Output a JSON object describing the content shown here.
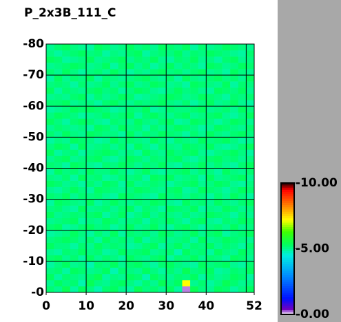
{
  "chart_data": {
    "type": "heatmap",
    "title": "P_2x3B_111_C",
    "xbins": [
      0,
      2,
      4,
      6,
      8,
      10,
      12,
      14,
      16,
      18,
      20,
      22,
      24,
      26,
      28,
      30,
      32,
      34,
      36,
      38,
      40,
      42,
      44,
      46,
      48,
      50,
      52
    ],
    "ybins": [
      0,
      2,
      4,
      6,
      8,
      10,
      12,
      14,
      16,
      18,
      20,
      22,
      24,
      26,
      28,
      30,
      32,
      34,
      36,
      38,
      40,
      42,
      44,
      46,
      48,
      50,
      52,
      54,
      56,
      58,
      60,
      62,
      64,
      66,
      68,
      70,
      72,
      74,
      76,
      78,
      80
    ],
    "z": [
      [
        5.2,
        5.0,
        5.4,
        4.9,
        5.3,
        5.1,
        4.8,
        5.2,
        5.3,
        5.0,
        4.9,
        5.4,
        5.1,
        5.2,
        5.0,
        5.3,
        4.9,
        0.2,
        5.4,
        5.1,
        5.0,
        5.3,
        5.2,
        4.9,
        5.1,
        5.3
      ],
      [
        5.0,
        5.3,
        5.1,
        5.2,
        4.8,
        5.4,
        5.1,
        5.0,
        5.2,
        5.3,
        5.1,
        4.9,
        5.2,
        5.0,
        5.4,
        5.1,
        5.3,
        7.2,
        5.0,
        5.2,
        4.9,
        5.1,
        5.4,
        5.2,
        5.0,
        5.1
      ],
      [
        5.3,
        4.9,
        5.2,
        5.1,
        5.0,
        5.2,
        5.4,
        4.9,
        5.1,
        5.0,
        5.3,
        5.2,
        4.8,
        5.3,
        5.1,
        5.0,
        5.2,
        5.1,
        5.3,
        4.9,
        5.2,
        5.0,
        5.1,
        5.3,
        5.2,
        4.9
      ],
      [
        5.1,
        5.2,
        4.9,
        5.3,
        5.2,
        5.0,
        5.1,
        5.3,
        4.8,
        5.2,
        5.1,
        5.0,
        5.3,
        5.1,
        4.9,
        5.2,
        5.0,
        5.4,
        5.1,
        5.2,
        5.3,
        4.9,
        5.0,
        5.2,
        5.1,
        5.3
      ],
      [
        4.9,
        5.1,
        5.3,
        5.0,
        5.1,
        4.8,
        5.2,
        5.1,
        5.3,
        5.0,
        5.2,
        5.3,
        5.1,
        4.9,
        5.2,
        5.3,
        5.1,
        5.0,
        4.9,
        5.3,
        5.1,
        5.2,
        5.3,
        5.0,
        4.9,
        5.2
      ],
      [
        5.2,
        5.3,
        5.0,
        5.2,
        4.9,
        5.3,
        5.0,
        5.2,
        5.1,
        4.9,
        5.3,
        5.1,
        5.0,
        5.2,
        5.3,
        4.9,
        5.2,
        5.1,
        5.3,
        5.0,
        5.2,
        5.1,
        4.9,
        5.3,
        5.2,
        5.0
      ],
      [
        5.0,
        4.9,
        5.2,
        5.1,
        5.3,
        5.1,
        5.2,
        4.9,
        5.0,
        5.3,
        5.1,
        5.2,
        5.3,
        5.0,
        5.1,
        5.2,
        4.8,
        5.3,
        5.1,
        5.2,
        4.9,
        5.3,
        5.1,
        5.0,
        5.3,
        5.1
      ],
      [
        5.3,
        5.1,
        5.1,
        4.9,
        5.2,
        5.0,
        5.3,
        5.1,
        5.2,
        5.1,
        4.9,
        5.0,
        5.2,
        5.3,
        4.9,
        5.1,
        5.3,
        5.0,
        5.2,
        5.1,
        5.3,
        5.0,
        5.2,
        5.1,
        4.9,
        5.2
      ],
      [
        5.1,
        5.2,
        5.3,
        5.2,
        5.0,
        5.2,
        4.9,
        5.3,
        5.1,
        5.2,
        5.0,
        5.3,
        4.9,
        5.1,
        5.2,
        5.0,
        5.1,
        5.2,
        4.9,
        5.3,
        5.0,
        5.1,
        5.3,
        5.2,
        5.1,
        5.0
      ],
      [
        4.9,
        5.0,
        5.1,
        5.3,
        5.1,
        4.9,
        5.2,
        5.0,
        5.3,
        4.9,
        5.2,
        5.1,
        5.2,
        5.0,
        5.3,
        5.2,
        5.0,
        5.1,
        5.3,
        5.0,
        5.2,
        5.3,
        4.9,
        5.1,
        5.2,
        5.3
      ],
      [
        5.2,
        5.3,
        4.9,
        5.0,
        5.2,
        5.3,
        5.1,
        5.2,
        4.9,
        5.1,
        5.3,
        5.0,
        5.1,
        5.3,
        5.0,
        4.9,
        5.2,
        5.3,
        5.1,
        4.9,
        5.1,
        5.2,
        5.0,
        5.3,
        5.0,
        5.1
      ],
      [
        5.0,
        5.1,
        5.2,
        5.3,
        4.9,
        5.1,
        5.0,
        5.3,
        5.2,
        5.0,
        5.1,
        5.2,
        4.9,
        5.2,
        5.1,
        5.3,
        5.1,
        4.9,
        5.2,
        5.3,
        5.0,
        4.9,
        5.2,
        5.1,
        5.3,
        5.2
      ],
      [
        5.3,
        5.0,
        5.1,
        5.2,
        5.1,
        5.2,
        5.3,
        4.9,
        5.1,
        5.3,
        4.9,
        5.1,
        5.3,
        5.0,
        5.2,
        5.1,
        5.0,
        5.2,
        5.0,
        5.1,
        5.3,
        5.2,
        5.1,
        4.9,
        5.2,
        5.0
      ],
      [
        5.1,
        5.2,
        5.0,
        4.9,
        5.3,
        5.0,
        5.1,
        5.2,
        5.0,
        5.2,
        5.3,
        4.9,
        5.2,
        5.1,
        4.9,
        5.3,
        5.2,
        5.1,
        5.3,
        4.9,
        5.1,
        5.0,
        5.3,
        5.2,
        5.0,
        5.1
      ],
      [
        4.9,
        5.3,
        5.2,
        5.1,
        5.0,
        5.3,
        4.9,
        5.1,
        5.3,
        5.1,
        5.0,
        5.2,
        5.1,
        5.3,
        5.2,
        5.0,
        4.9,
        5.3,
        5.1,
        5.2,
        5.0,
        5.3,
        5.1,
        5.0,
        5.2,
        5.3
      ],
      [
        5.2,
        5.1,
        5.3,
        5.0,
        5.2,
        5.1,
        5.2,
        5.0,
        4.9,
        5.3,
        5.2,
        5.1,
        5.0,
        4.9,
        5.3,
        5.1,
        5.2,
        5.0,
        5.2,
        5.1,
        4.9,
        5.2,
        5.0,
        5.3,
        5.1,
        4.9
      ],
      [
        5.0,
        4.9,
        5.1,
        5.3,
        5.1,
        4.9,
        5.3,
        5.2,
        5.1,
        5.0,
        5.1,
        5.3,
        5.2,
        5.1,
        5.0,
        5.2,
        5.3,
        4.9,
        5.0,
        5.3,
        5.2,
        5.1,
        4.9,
        5.1,
        5.3,
        5.2
      ],
      [
        5.3,
        5.2,
        5.0,
        5.1,
        4.9,
        5.2,
        5.0,
        5.3,
        5.2,
        4.9,
        5.3,
        5.0,
        5.1,
        5.2,
        5.1,
        4.9,
        5.1,
        5.2,
        5.3,
        5.0,
        5.1,
        5.3,
        5.2,
        5.0,
        4.9,
        5.1
      ],
      [
        5.1,
        5.0,
        5.2,
        4.9,
        5.3,
        5.1,
        5.2,
        4.9,
        5.0,
        5.2,
        5.1,
        5.2,
        4.9,
        5.3,
        5.2,
        5.3,
        5.0,
        5.1,
        5.2,
        4.9,
        5.3,
        5.0,
        5.1,
        5.2,
        5.3,
        5.0
      ],
      [
        4.9,
        5.3,
        5.1,
        5.2,
        5.0,
        5.3,
        5.1,
        5.1,
        5.3,
        5.1,
        4.9,
        5.1,
        5.3,
        5.0,
        4.9,
        5.1,
        5.2,
        5.3,
        5.0,
        5.2,
        5.1,
        4.9,
        5.3,
        5.1,
        5.0,
        5.2
      ],
      [
        5.2,
        5.1,
        4.9,
        5.3,
        5.2,
        5.0,
        4.9,
        5.2,
        5.1,
        5.3,
        5.2,
        5.0,
        5.2,
        5.1,
        5.3,
        5.0,
        4.9,
        5.2,
        5.1,
        5.3,
        5.0,
        5.2,
        5.0,
        4.9,
        5.2,
        5.3
      ],
      [
        5.0,
        5.2,
        5.3,
        5.0,
        5.1,
        5.2,
        5.3,
        5.0,
        4.9,
        5.1,
        5.3,
        5.2,
        5.0,
        5.2,
        5.1,
        5.2,
        5.3,
        5.0,
        4.9,
        5.1,
        5.2,
        5.3,
        5.1,
        5.2,
        5.0,
        5.1
      ],
      [
        5.3,
        4.9,
        5.1,
        5.2,
        4.9,
        5.1,
        5.2,
        5.3,
        5.2,
        5.0,
        5.1,
        4.9,
        5.3,
        5.1,
        5.0,
        5.3,
        5.1,
        5.2,
        5.3,
        5.0,
        4.9,
        5.1,
        5.2,
        5.3,
        5.1,
        4.9
      ],
      [
        5.1,
        5.3,
        5.2,
        4.9,
        5.3,
        5.0,
        5.1,
        5.2,
        5.0,
        5.2,
        4.9,
        5.3,
        5.1,
        4.9,
        5.2,
        5.1,
        5.0,
        5.3,
        5.2,
        5.1,
        5.3,
        5.0,
        4.9,
        5.0,
        5.2,
        5.3
      ],
      [
        4.9,
        5.1,
        5.0,
        5.3,
        5.2,
        5.1,
        4.9,
        5.0,
        5.3,
        5.1,
        5.2,
        5.1,
        5.0,
        5.3,
        5.1,
        4.9,
        5.2,
        5.1,
        5.0,
        5.3,
        5.1,
        5.2,
        5.3,
        5.1,
        4.9,
        5.0
      ],
      [
        5.2,
        5.0,
        5.3,
        5.1,
        5.0,
        5.3,
        5.2,
        5.1,
        5.1,
        4.9,
        5.3,
        5.0,
        5.2,
        5.1,
        5.3,
        5.2,
        5.1,
        4.9,
        5.2,
        5.0,
        5.3,
        5.1,
        5.0,
        5.2,
        5.3,
        5.1
      ],
      [
        5.0,
        5.2,
        5.1,
        5.0,
        5.1,
        4.9,
        5.3,
        5.2,
        5.0,
        5.3,
        5.1,
        5.2,
        4.9,
        5.2,
        5.0,
        5.1,
        5.3,
        5.2,
        5.1,
        4.9,
        5.0,
        5.3,
        5.2,
        5.1,
        5.0,
        5.2
      ],
      [
        5.3,
        5.1,
        4.9,
        5.2,
        5.3,
        5.2,
        5.0,
        4.9,
        5.2,
        5.1,
        5.0,
        5.3,
        5.1,
        5.0,
        5.2,
        5.3,
        4.9,
        5.0,
        5.3,
        5.2,
        5.1,
        4.9,
        5.1,
        5.3,
        5.2,
        5.0
      ],
      [
        5.1,
        5.3,
        5.2,
        5.1,
        4.9,
        5.0,
        5.1,
        5.3,
        5.1,
        5.2,
        5.3,
        4.9,
        5.2,
        5.3,
        5.1,
        5.0,
        5.2,
        5.3,
        5.0,
        5.1,
        5.2,
        5.3,
        5.0,
        4.9,
        5.1,
        5.3
      ],
      [
        4.9,
        5.0,
        5.1,
        5.3,
        5.2,
        5.3,
        5.2,
        5.1,
        4.9,
        5.0,
        5.2,
        5.1,
        5.3,
        4.9,
        5.0,
        5.2,
        5.1,
        5.1,
        5.2,
        5.3,
        5.0,
        5.1,
        5.2,
        5.0,
        5.3,
        5.1
      ],
      [
        5.2,
        5.2,
        5.3,
        5.0,
        5.1,
        5.1,
        4.9,
        5.2,
        5.3,
        5.1,
        5.0,
        5.2,
        5.1,
        5.2,
        5.3,
        5.1,
        5.0,
        5.2,
        4.9,
        5.1,
        5.3,
        5.0,
        5.1,
        5.3,
        5.0,
        4.9
      ],
      [
        5.0,
        5.1,
        5.0,
        5.2,
        5.3,
        4.9,
        5.2,
        5.0,
        5.1,
        5.3,
        5.2,
        4.9,
        5.0,
        5.1,
        5.2,
        5.3,
        5.2,
        5.0,
        5.1,
        5.3,
        5.2,
        5.1,
        4.9,
        5.2,
        5.1,
        5.2
      ],
      [
        5.3,
        4.9,
        5.2,
        5.1,
        5.0,
        5.2,
        5.3,
        5.1,
        5.2,
        4.9,
        5.1,
        5.3,
        5.2,
        5.0,
        4.9,
        5.1,
        5.3,
        5.1,
        5.2,
        5.0,
        4.9,
        5.3,
        5.2,
        5.1,
        5.3,
        5.0
      ],
      [
        5.1,
        5.2,
        5.1,
        4.9,
        5.2,
        5.0,
        5.1,
        5.3,
        5.0,
        5.2,
        5.3,
        5.0,
        5.1,
        5.3,
        5.2,
        5.0,
        5.1,
        4.9,
        5.3,
        5.2,
        5.1,
        5.0,
        5.3,
        4.9,
        5.2,
        5.1
      ],
      [
        4.9,
        5.3,
        5.0,
        5.2,
        5.1,
        5.3,
        4.9,
        5.2,
        5.1,
        5.0,
        5.1,
        5.2,
        5.3,
        5.1,
        5.0,
        5.2,
        4.9,
        5.3,
        5.1,
        5.0,
        5.2,
        5.3,
        5.1,
        5.2,
        5.0,
        5.3
      ],
      [
        5.2,
        5.0,
        5.3,
        5.1,
        4.9,
        5.1,
        5.2,
        5.0,
        5.3,
        5.1,
        4.9,
        5.1,
        5.0,
        5.2,
        5.3,
        5.1,
        5.2,
        5.0,
        5.2,
        5.3,
        5.0,
        5.1,
        4.9,
        5.3,
        5.1,
        5.0
      ],
      [
        5.0,
        5.1,
        5.2,
        5.3,
        5.2,
        5.0,
        5.1,
        5.3,
        4.9,
        5.2,
        5.3,
        5.0,
        5.2,
        4.9,
        5.1,
        5.3,
        5.0,
        5.2,
        5.1,
        4.9,
        5.3,
        5.2,
        5.0,
        5.1,
        5.3,
        5.2
      ],
      [
        5.3,
        5.2,
        4.9,
        5.0,
        5.1,
        5.3,
        5.0,
        5.1,
        5.2,
        5.3,
        5.0,
        5.2,
        5.1,
        5.3,
        5.0,
        4.9,
        5.2,
        5.1,
        5.3,
        5.0,
        5.1,
        4.9,
        5.2,
        5.3,
        5.0,
        5.1
      ],
      [
        5.1,
        4.9,
        5.1,
        5.2,
        5.3,
        5.1,
        5.2,
        4.9,
        5.1,
        5.0,
        5.2,
        5.3,
        4.9,
        5.1,
        5.2,
        5.1,
        5.3,
        5.0,
        5.2,
        5.1,
        5.3,
        5.2,
        5.1,
        5.0,
        4.9,
        5.2
      ],
      [
        5.0,
        5.2,
        5.3,
        5.1,
        5.0,
        4.9,
        5.3,
        5.2,
        5.0,
        5.1,
        5.3,
        5.1,
        5.2,
        5.0,
        5.3,
        5.2,
        5.1,
        5.3,
        4.9,
        5.2,
        5.0,
        5.1,
        5.3,
        5.2,
        5.1,
        5.0
      ]
    ],
    "xlim": [
      0,
      52
    ],
    "ylim": [
      0,
      80
    ],
    "xticks": [
      0,
      10,
      20,
      30,
      40,
      52
    ],
    "xgrid": [
      10,
      20,
      30,
      40,
      50
    ],
    "yticks": [
      {
        "value": 0,
        "label": "-0"
      },
      {
        "value": 10,
        "label": "-10"
      },
      {
        "value": 20,
        "label": "-20"
      },
      {
        "value": 30,
        "label": "-30"
      },
      {
        "value": 40,
        "label": "-40"
      },
      {
        "value": 50,
        "label": "-50"
      },
      {
        "value": 60,
        "label": "-60"
      },
      {
        "value": 70,
        "label": "-70"
      },
      {
        "value": 80,
        "label": "-80"
      }
    ],
    "clim": [
      0,
      10
    ],
    "cticks": [
      {
        "value": 0,
        "label": "-0.00"
      },
      {
        "value": 5,
        "label": "-5.00"
      },
      {
        "value": 10,
        "label": "-10.00"
      }
    ],
    "colormap": [
      [
        0,
        "#ffffff"
      ],
      [
        0.4,
        "#7000c0"
      ],
      [
        1.2,
        "#0010ff"
      ],
      [
        3,
        "#0090ff"
      ],
      [
        4.5,
        "#00f0e0"
      ],
      [
        5.3,
        "#00ff60"
      ],
      [
        6.3,
        "#40ff00"
      ],
      [
        7.2,
        "#ffff00"
      ],
      [
        8.3,
        "#ff8000"
      ],
      [
        9.5,
        "#ff0000"
      ],
      [
        10,
        "#200000"
      ]
    ],
    "grid": true
  }
}
